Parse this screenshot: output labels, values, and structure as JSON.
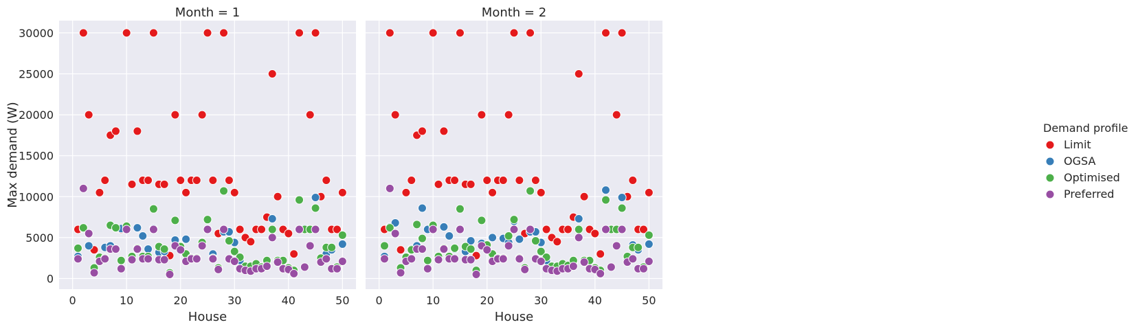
{
  "chart_data": {
    "type": "scatter",
    "y_label": "Max demand (W)",
    "x_label": "House",
    "xlim": [
      -2.5,
      52.5
    ],
    "ylim": [
      -1300,
      31500
    ],
    "x_ticks": [
      0,
      10,
      20,
      30,
      40,
      50
    ],
    "y_ticks": [
      0,
      5000,
      10000,
      15000,
      20000,
      25000,
      30000
    ],
    "grid": true,
    "legend": {
      "title": "Demand profile",
      "placement": "right",
      "entries": [
        "Limit",
        "OGSA",
        "Optimised",
        "Preferred"
      ]
    },
    "colors": {
      "Limit": "#e41a1c",
      "OGSA": "#377eb8",
      "Optimised": "#4daf4a",
      "Preferred": "#984ea3"
    },
    "panels": [
      {
        "title": "Month = 1",
        "series": [
          {
            "name": "Limit",
            "x": [
              1,
              2,
              3,
              4,
              5,
              6,
              7,
              8,
              9,
              10,
              11,
              12,
              13,
              14,
              15,
              16,
              17,
              18,
              19,
              20,
              21,
              22,
              23,
              24,
              25,
              26,
              27,
              28,
              29,
              30,
              31,
              32,
              33,
              34,
              35,
              36,
              37,
              38,
              39,
              40,
              41,
              42,
              43,
              44,
              45,
              46,
              47,
              48,
              49,
              50
            ],
            "y": [
              6000,
              30000,
              20000,
              3500,
              10500,
              12000,
              17500,
              18000,
              6000,
              30000,
              11500,
              18000,
              12000,
              12000,
              30000,
              11500,
              11500,
              2800,
              20000,
              12000,
              10500,
              12000,
              12000,
              20000,
              30000,
              12000,
              5500,
              30000,
              12000,
              10500,
              6000,
              5000,
              4500,
              6000,
              6000,
              7500,
              25000,
              10000,
              6000,
              5500,
              3000,
              30000,
              6000,
              20000,
              30000,
              10000,
              12000,
              6000,
              6000,
              10500
            ]
          },
          {
            "name": "OGSA",
            "x": [
              1,
              2,
              3,
              4,
              5,
              6,
              7,
              8,
              9,
              10,
              11,
              12,
              13,
              14,
              15,
              16,
              17,
              18,
              19,
              20,
              21,
              22,
              23,
              24,
              25,
              26,
              27,
              28,
              29,
              30,
              31,
              32,
              33,
              34,
              35,
              36,
              37,
              38,
              39,
              40,
              41,
              42,
              43,
              44,
              45,
              46,
              47,
              48,
              49,
              50
            ],
            "y": [
              2700,
              6100,
              4000,
              1200,
              2400,
              3800,
              4000,
              6200,
              6100,
              6100,
              2700,
              6200,
              5200,
              3600,
              6100,
              3200,
              3300,
              700,
              4700,
              3800,
              4800,
              2400,
              2400,
              4300,
              6000,
              3000,
              1200,
              5700,
              5700,
              4400,
              2200,
              1200,
              1100,
              1300,
              1400,
              1600,
              7300,
              2200,
              1200,
              1200,
              900,
              6000,
              6100,
              6000,
              9900,
              2100,
              3000,
              3500,
              1300,
              4200
            ]
          },
          {
            "name": "Optimised",
            "x": [
              1,
              2,
              3,
              4,
              5,
              6,
              7,
              8,
              9,
              10,
              11,
              12,
              13,
              14,
              15,
              16,
              17,
              18,
              19,
              20,
              21,
              22,
              23,
              24,
              25,
              26,
              27,
              28,
              29,
              30,
              31,
              32,
              33,
              34,
              35,
              36,
              37,
              38,
              39,
              40,
              41,
              42,
              43,
              44,
              45,
              46,
              47,
              48,
              49,
              50
            ],
            "y": [
              3700,
              6200,
              5500,
              1300,
              2600,
              2500,
              6500,
              6200,
              2200,
              6400,
              2700,
              3700,
              2700,
              2700,
              8500,
              3900,
              3600,
              700,
              7100,
              3900,
              3000,
              2500,
              2500,
              4400,
              7200,
              2500,
              1300,
              10700,
              4600,
              3300,
              2600,
              1500,
              1500,
              1800,
              1400,
              2200,
              6000,
              2200,
              2200,
              1300,
              1000,
              9600,
              6000,
              6000,
              8600,
              2500,
              3800,
              3800,
              1400,
              5300
            ]
          },
          {
            "name": "Preferred",
            "x": [
              1,
              2,
              3,
              4,
              5,
              6,
              7,
              8,
              9,
              10,
              11,
              12,
              13,
              14,
              15,
              16,
              17,
              18,
              19,
              20,
              21,
              22,
              23,
              24,
              25,
              26,
              27,
              28,
              29,
              30,
              31,
              32,
              33,
              34,
              35,
              36,
              37,
              38,
              39,
              40,
              41,
              42,
              43,
              44,
              45,
              46,
              47,
              48,
              49,
              50
            ],
            "y": [
              2400,
              11000,
              5500,
              700,
              2100,
              2400,
              3600,
              3600,
              1200,
              6000,
              2300,
              3600,
              2400,
              2400,
              6000,
              2300,
              2300,
              500,
              4000,
              3500,
              2100,
              2400,
              2400,
              4000,
              6000,
              2400,
              1100,
              6000,
              2400,
              2100,
              1200,
              1000,
              900,
              1200,
              1200,
              1500,
              5000,
              2000,
              1200,
              1100,
              600,
              6000,
              1400,
              4000,
              6000,
              2000,
              2400,
              1200,
              1200,
              2100
            ]
          }
        ]
      },
      {
        "title": "Month = 2",
        "series": [
          {
            "name": "Limit",
            "x": [
              1,
              2,
              3,
              4,
              5,
              6,
              7,
              8,
              9,
              10,
              11,
              12,
              13,
              14,
              15,
              16,
              17,
              18,
              19,
              20,
              21,
              22,
              23,
              24,
              25,
              26,
              27,
              28,
              29,
              30,
              31,
              32,
              33,
              34,
              35,
              36,
              37,
              38,
              39,
              40,
              41,
              42,
              43,
              44,
              45,
              46,
              47,
              48,
              49,
              50
            ],
            "y": [
              6000,
              30000,
              20000,
              3500,
              10500,
              12000,
              17500,
              18000,
              6000,
              30000,
              11500,
              18000,
              12000,
              12000,
              30000,
              11500,
              11500,
              2800,
              20000,
              12000,
              10500,
              12000,
              12000,
              20000,
              30000,
              12000,
              5500,
              30000,
              12000,
              10500,
              6000,
              5000,
              4500,
              6000,
              6000,
              7500,
              25000,
              10000,
              6000,
              5500,
              3000,
              30000,
              6000,
              20000,
              30000,
              10000,
              12000,
              6000,
              6000,
              10500
            ]
          },
          {
            "name": "OGSA",
            "x": [
              1,
              2,
              3,
              4,
              5,
              6,
              7,
              8,
              9,
              10,
              11,
              12,
              13,
              14,
              15,
              16,
              17,
              18,
              19,
              20,
              21,
              22,
              23,
              24,
              25,
              26,
              27,
              28,
              29,
              30,
              31,
              32,
              33,
              34,
              35,
              36,
              37,
              38,
              39,
              40,
              41,
              42,
              43,
              44,
              45,
              46,
              47,
              48,
              49,
              50
            ],
            "y": [
              2700,
              6300,
              6800,
              1200,
              2600,
              3600,
              4000,
              8600,
              6000,
              6400,
              2700,
              6300,
              5200,
              3600,
              6000,
              3300,
              4600,
              1000,
              4300,
              3500,
              5000,
              2500,
              4900,
              4400,
              7000,
              4800,
              1200,
              5700,
              5700,
              4400,
              2200,
              1300,
              1100,
              1300,
              1600,
              2000,
              7300,
              2200,
              1300,
              1200,
              900,
              10800,
              6000,
              6000,
              9900,
              2400,
              4100,
              3500,
              1300,
              4200
            ]
          },
          {
            "name": "Optimised",
            "x": [
              1,
              2,
              3,
              4,
              5,
              6,
              7,
              8,
              9,
              10,
              11,
              12,
              13,
              14,
              15,
              16,
              17,
              18,
              19,
              20,
              21,
              22,
              23,
              24,
              25,
              26,
              27,
              28,
              29,
              30,
              31,
              32,
              33,
              34,
              35,
              36,
              37,
              38,
              39,
              40,
              41,
              42,
              43,
              44,
              45,
              46,
              47,
              48,
              49,
              50
            ],
            "y": [
              4000,
              6200,
              5500,
              1300,
              2600,
              3500,
              6600,
              4900,
              2200,
              6500,
              2700,
              3700,
              2700,
              3700,
              8500,
              3900,
              3600,
              1000,
              7100,
              4100,
              3000,
              2500,
              2500,
              5200,
              7200,
              2500,
              1300,
              10700,
              4600,
              3300,
              2600,
              1500,
              1500,
              1800,
              1600,
              2200,
              6000,
              2200,
              2200,
              1300,
              1000,
              9600,
              6000,
              6000,
              8600,
              2700,
              3800,
              3800,
              1400,
              5300
            ]
          },
          {
            "name": "Preferred",
            "x": [
              1,
              2,
              3,
              4,
              5,
              6,
              7,
              8,
              9,
              10,
              11,
              12,
              13,
              14,
              15,
              16,
              17,
              18,
              19,
              20,
              21,
              22,
              23,
              24,
              25,
              26,
              27,
              28,
              29,
              30,
              31,
              32,
              33,
              34,
              35,
              36,
              37,
              38,
              39,
              40,
              41,
              42,
              43,
              44,
              45,
              46,
              47,
              48,
              49,
              50
            ],
            "y": [
              2400,
              11000,
              5500,
              700,
              2100,
              2400,
              3600,
              3600,
              1200,
              6000,
              2300,
              3600,
              2400,
              2400,
              6000,
              2300,
              2300,
              500,
              4000,
              3500,
              2100,
              2400,
              2400,
              4000,
              6000,
              2400,
              1100,
              6000,
              2400,
              2100,
              1200,
              1000,
              900,
              1200,
              1200,
              1500,
              5000,
              2000,
              1200,
              1100,
              600,
              6000,
              1400,
              4000,
              6000,
              2000,
              2400,
              1200,
              1200,
              2100
            ]
          }
        ]
      }
    ]
  }
}
